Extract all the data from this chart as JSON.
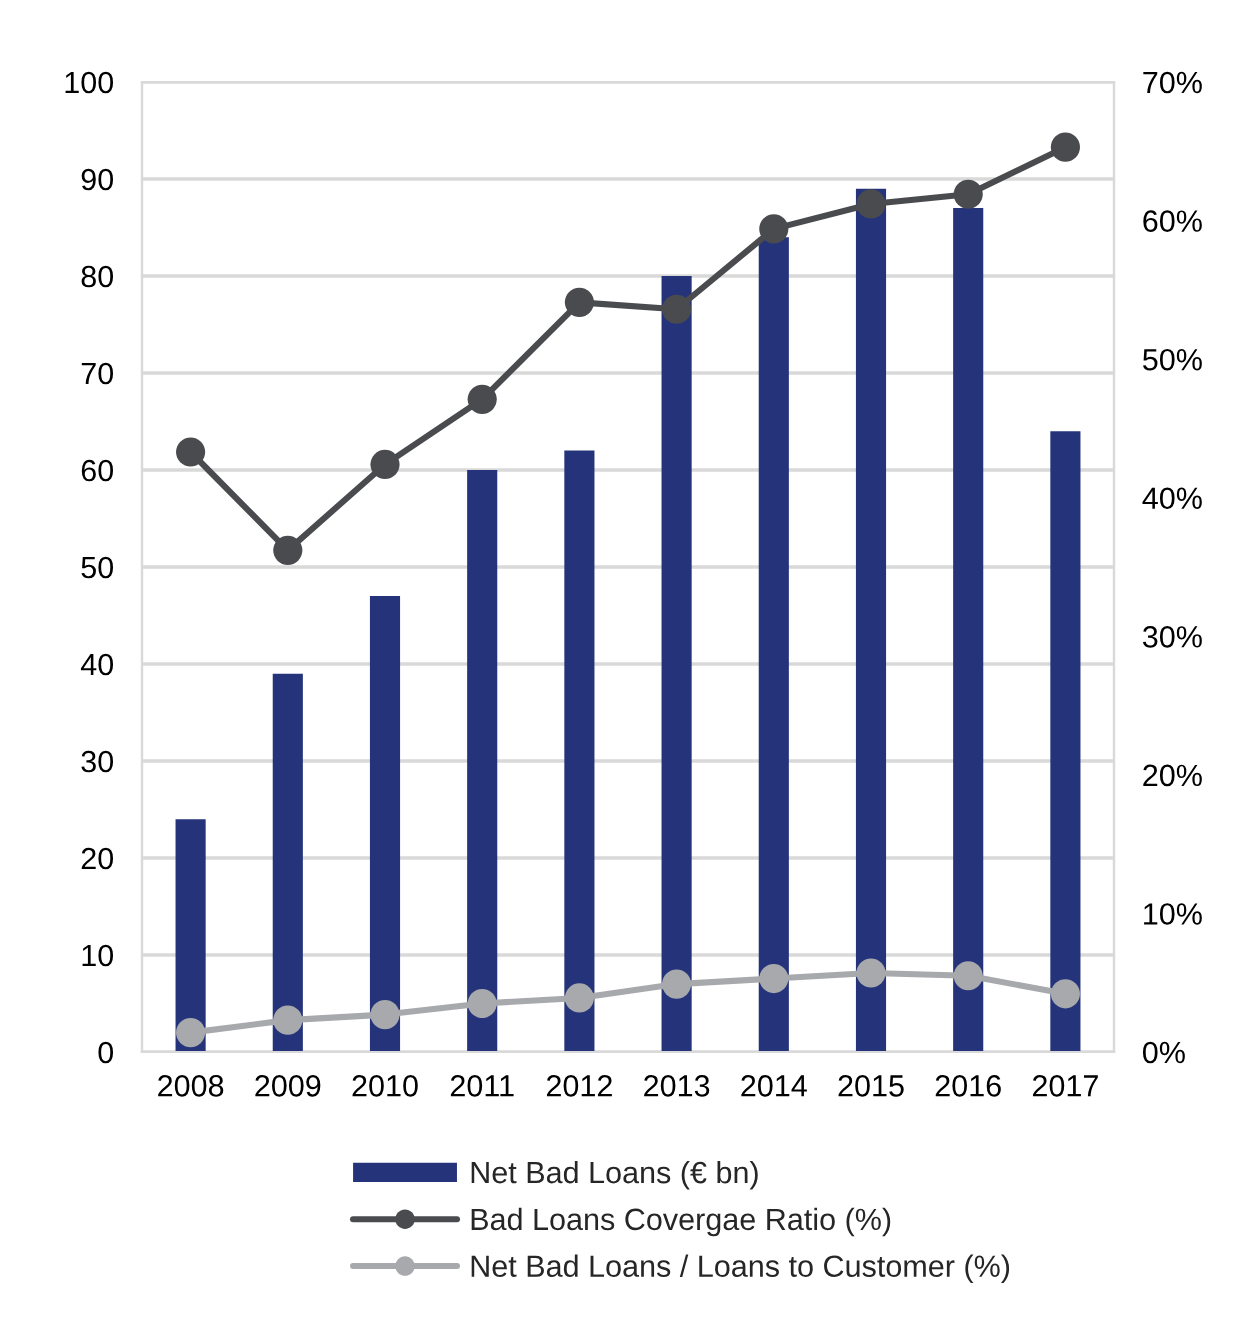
{
  "chart_data": {
    "type": "bar",
    "categories": [
      "2008",
      "2009",
      "2010",
      "2011",
      "2012",
      "2013",
      "2014",
      "2015",
      "2016",
      "2017"
    ],
    "series": [
      {
        "name": "Net Bad Loans (€ bn)",
        "color": "#25347a",
        "values": [
          24,
          39,
          47,
          60,
          62,
          80,
          84,
          89,
          87,
          64
        ]
      },
      {
        "name": "Bad Loans Covergae Ratio (%)",
        "type": "line",
        "axis": "y2",
        "color": "#4a4b4f",
        "values": [
          43.3,
          36.2,
          42.4,
          47.1,
          54.1,
          53.6,
          59.4,
          61.2,
          61.9,
          65.3
        ]
      },
      {
        "name": "Net Bad Loans / Loans to Customer (%)",
        "type": "line",
        "axis": "y2",
        "color": "#a7a9ac",
        "values": [
          1.4,
          2.3,
          2.7,
          3.5,
          3.9,
          4.9,
          5.3,
          5.7,
          5.5,
          4.2
        ]
      }
    ],
    "ylim": [
      0,
      100
    ],
    "yticks": [
      0,
      10,
      20,
      30,
      40,
      50,
      60,
      70,
      80,
      90,
      100
    ],
    "y2lim": [
      0,
      70
    ],
    "y2ticks": [
      {
        "value": 0,
        "label": "0%"
      },
      {
        "value": 10,
        "label": "10%"
      },
      {
        "value": 20,
        "label": "20%"
      },
      {
        "value": 30,
        "label": "30%"
      },
      {
        "value": 40,
        "label": "40%"
      },
      {
        "value": 50,
        "label": "50%"
      },
      {
        "value": 60,
        "label": "60%"
      },
      {
        "value": 70,
        "label": "70%"
      }
    ],
    "grid": "y",
    "legend": "bottom",
    "marker": "circle",
    "line_style": "solid"
  }
}
